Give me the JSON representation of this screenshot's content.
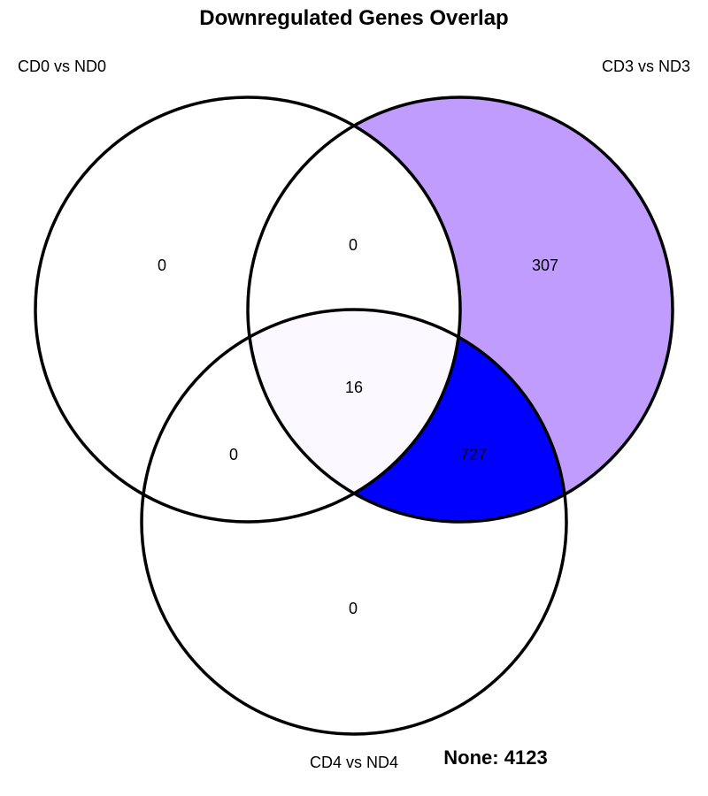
{
  "title": "Downregulated Genes Overlap",
  "sets": {
    "a": "CD0 vs ND0",
    "b": "CD3 vs ND3",
    "c": "CD4 vs ND4"
  },
  "regions": {
    "a_only": "0",
    "b_only": "307",
    "c_only": "0",
    "ab_only": "0",
    "ac_only": "0",
    "bc_only": "727",
    "abc": "16"
  },
  "none_label": "None: 4123",
  "colors": {
    "b_only_fill": "#c09cff",
    "bc_only_fill": "#0000ff",
    "abc_fill": "#fbf8ff",
    "outline": "#000000"
  },
  "chart_data": {
    "type": "venn",
    "title": "Downregulated Genes Overlap",
    "sets": [
      "CD0 vs ND0",
      "CD3 vs ND3",
      "CD4 vs ND4"
    ],
    "regions": [
      {
        "sets": [
          "CD0 vs ND0"
        ],
        "value": 0
      },
      {
        "sets": [
          "CD3 vs ND3"
        ],
        "value": 307
      },
      {
        "sets": [
          "CD4 vs ND4"
        ],
        "value": 0
      },
      {
        "sets": [
          "CD0 vs ND0",
          "CD3 vs ND3"
        ],
        "value": 0
      },
      {
        "sets": [
          "CD0 vs ND0",
          "CD4 vs ND4"
        ],
        "value": 0
      },
      {
        "sets": [
          "CD3 vs ND3",
          "CD4 vs ND4"
        ],
        "value": 727
      },
      {
        "sets": [
          "CD0 vs ND0",
          "CD3 vs ND3",
          "CD4 vs ND4"
        ],
        "value": 16
      }
    ],
    "none": 4123
  }
}
